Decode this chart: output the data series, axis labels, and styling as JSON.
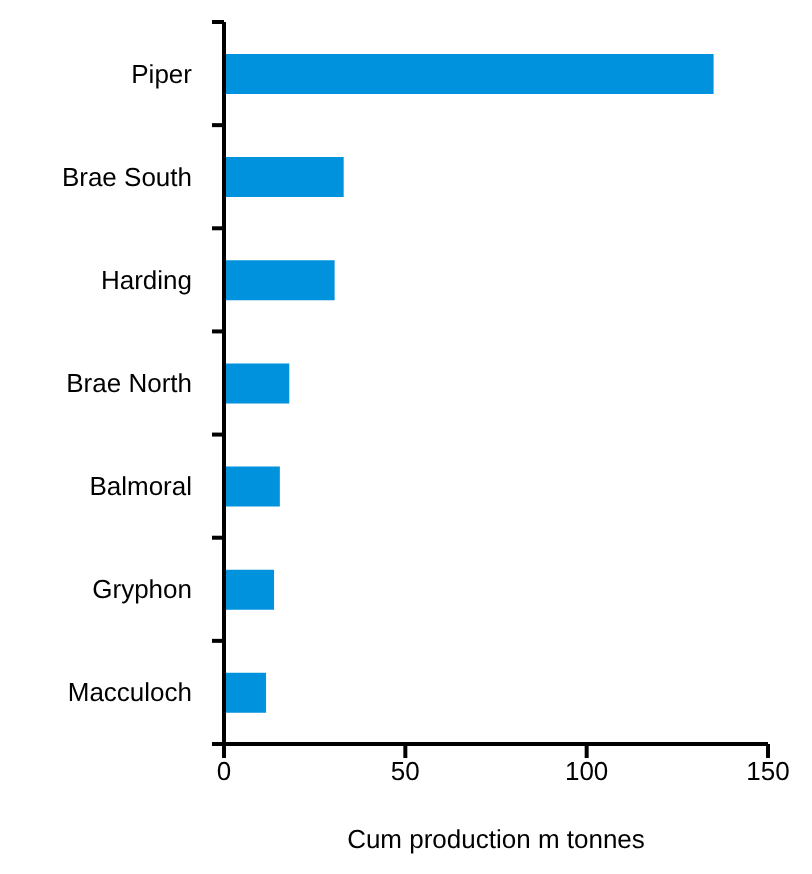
{
  "chart_data": {
    "type": "bar",
    "orientation": "horizontal",
    "xlabel": "Cum production m tonnes",
    "categories": [
      "Piper",
      "Brae South",
      "Harding",
      "Brae North",
      "Balmoral",
      "Gryphon",
      "Macculoch"
    ],
    "values": [
      135,
      33,
      30.5,
      18,
      15.4,
      13.8,
      11.6
    ],
    "color": "#0092dc",
    "xlim": [
      0,
      150
    ],
    "xticks": [
      0,
      50,
      100,
      150
    ],
    "grid": false,
    "legend": false
  }
}
